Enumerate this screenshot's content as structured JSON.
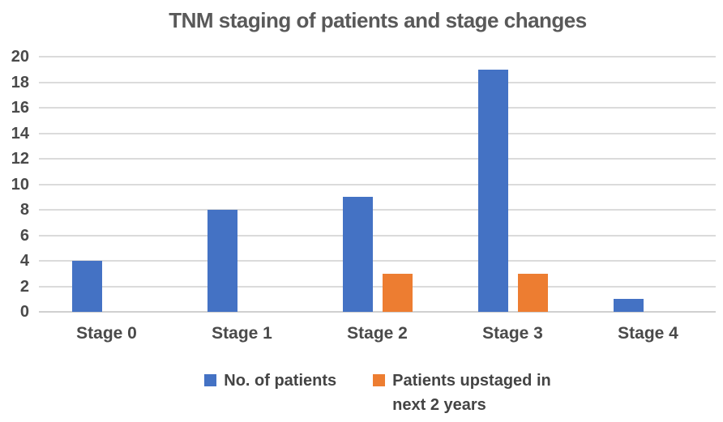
{
  "title": "TNM staging of patients and stage changes",
  "colors": {
    "series_blue": "#4472C4",
    "series_orange": "#ED7D31",
    "gridline": "#DBDBDB",
    "title_text": "#595959",
    "axis_text": "#4A4A4A",
    "background": "#FFFFFF"
  },
  "legend": {
    "items": [
      {
        "label": "No. of patients",
        "color": "#4472C4"
      },
      {
        "label": "Patients upstaged in\nnext 2 years",
        "color": "#ED7D31"
      }
    ]
  },
  "chart_data": {
    "type": "bar",
    "title": "TNM staging of patients and stage changes",
    "categories": [
      "Stage 0",
      "Stage 1",
      "Stage 2",
      "Stage 3",
      "Stage 4"
    ],
    "series": [
      {
        "name": "No. of patients",
        "color": "#4472C4",
        "values": [
          4,
          8,
          9,
          19,
          1
        ]
      },
      {
        "name": "Patients upstaged in next 2 years",
        "color": "#ED7D31",
        "values": [
          0,
          0,
          3,
          3,
          0
        ]
      }
    ],
    "xlabel": "",
    "ylabel": "",
    "ylim": [
      0,
      20
    ],
    "yticks": [
      0,
      2,
      4,
      6,
      8,
      10,
      12,
      14,
      16,
      18,
      20
    ],
    "grid": true,
    "legend_position": "bottom"
  }
}
